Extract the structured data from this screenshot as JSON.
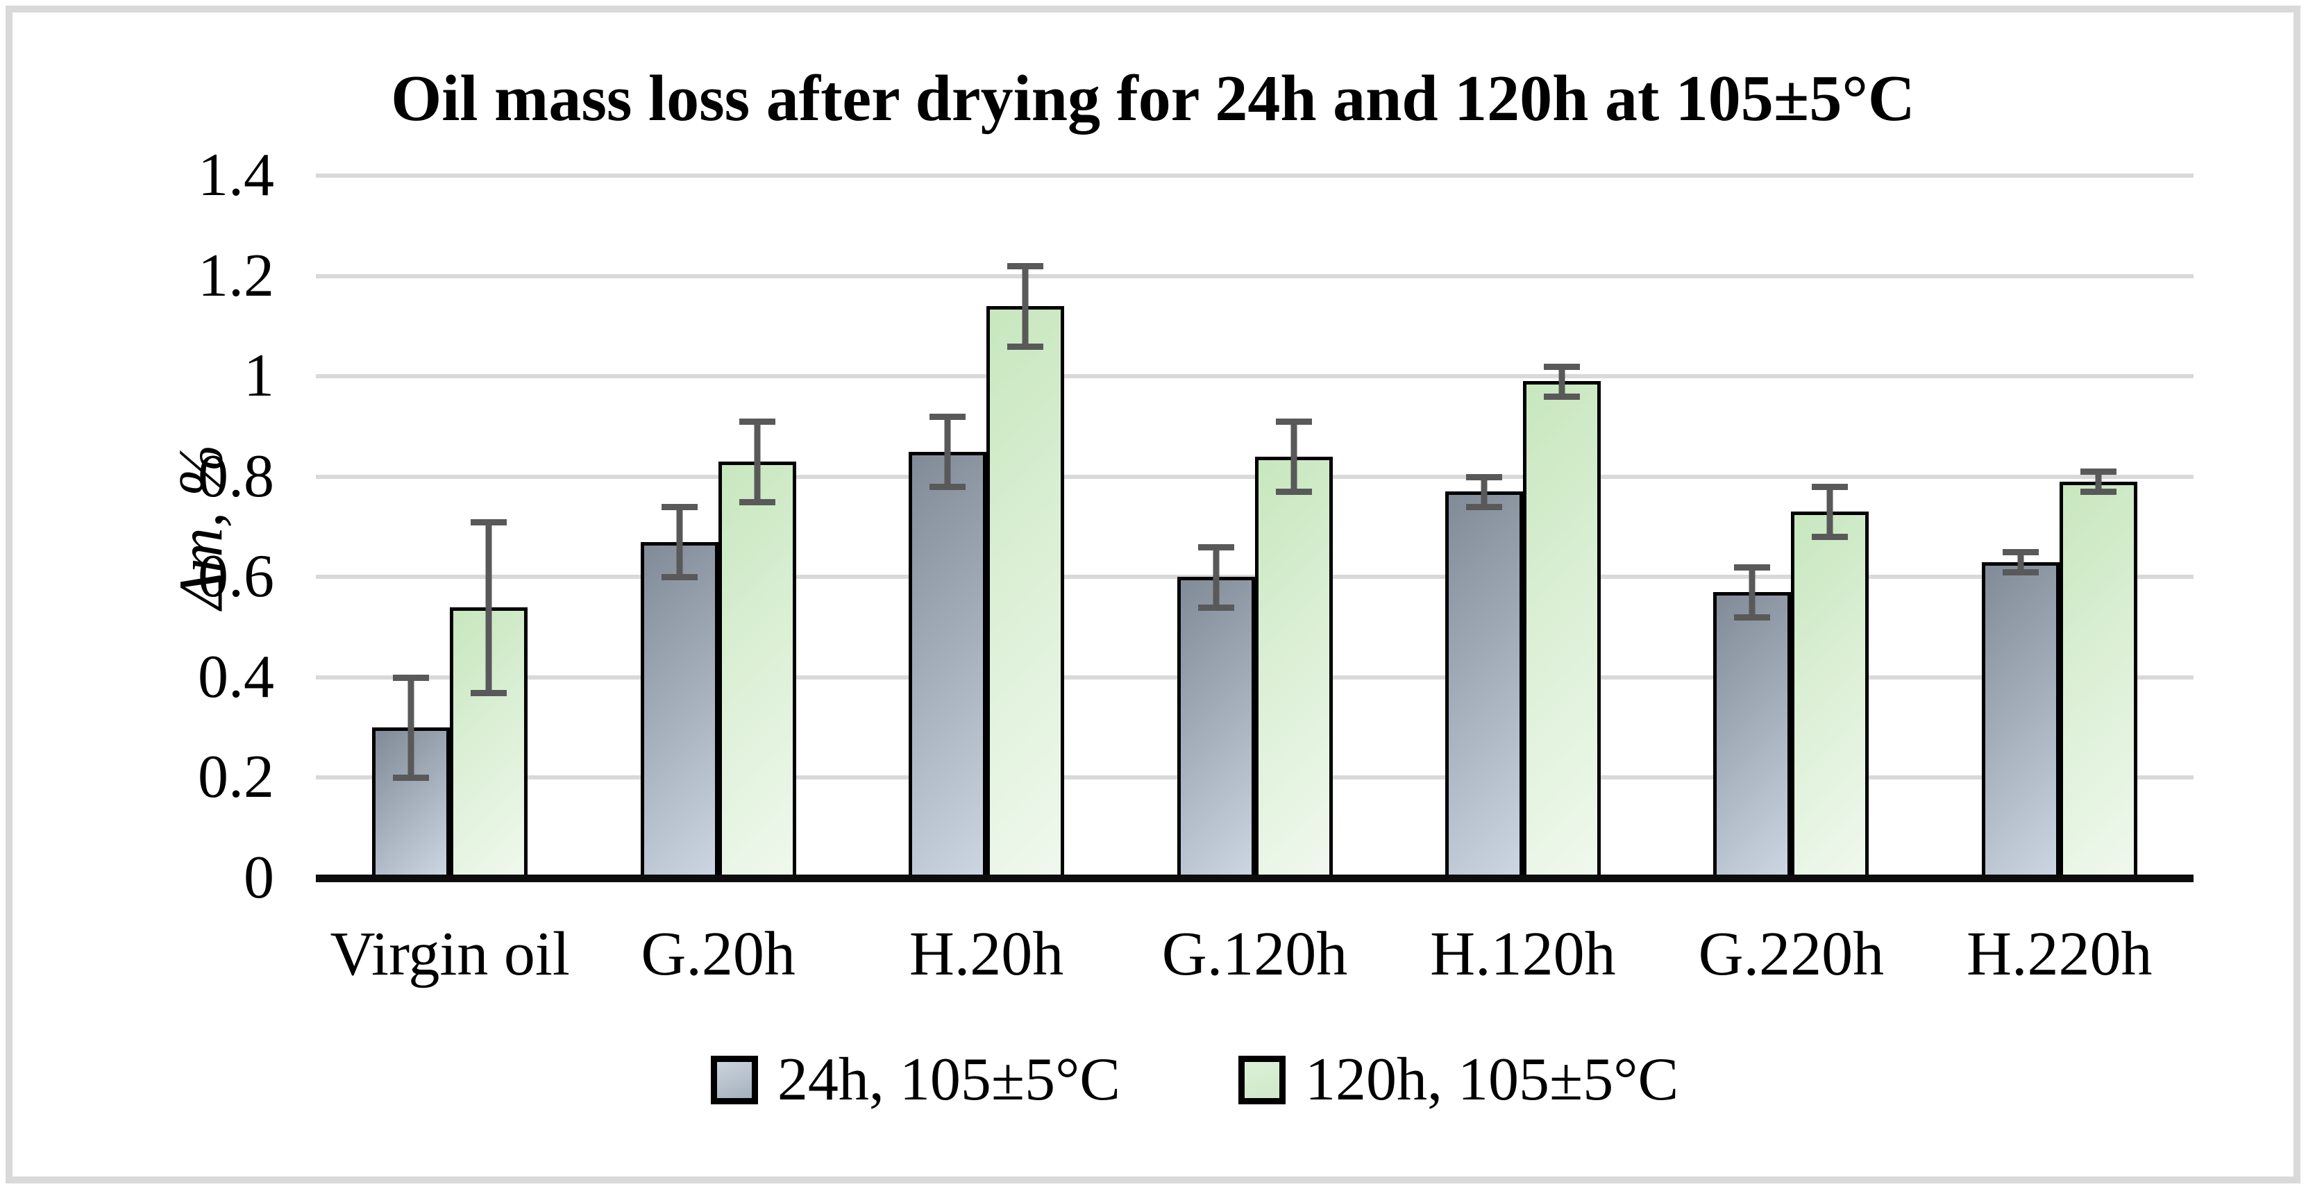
{
  "figure": {
    "title": "Oil mass loss after drying for 24h and 120h at 105±5°C"
  },
  "chart_data": {
    "type": "bar",
    "title": "Oil mass loss after drying for 24h and 120h at 105±5°C",
    "xlabel": "",
    "ylabel": "Δm, %",
    "categories": [
      "Virgin oil",
      "G.20h",
      "H.20h",
      "G.120h",
      "H.120h",
      "G.220h",
      "H.220h"
    ],
    "series": [
      {
        "name": "24h, 105±5°C",
        "values": [
          0.3,
          0.67,
          0.85,
          0.6,
          0.77,
          0.57,
          0.63
        ],
        "errors": [
          0.1,
          0.07,
          0.07,
          0.06,
          0.03,
          0.05,
          0.02
        ]
      },
      {
        "name": "120h, 105±5°C",
        "values": [
          0.54,
          0.83,
          1.14,
          0.84,
          0.99,
          0.73,
          0.79
        ],
        "errors": [
          0.17,
          0.08,
          0.08,
          0.07,
          0.03,
          0.05,
          0.02
        ]
      }
    ],
    "ylim": [
      0,
      1.4
    ],
    "y_tick_values": [
      0,
      0.2,
      0.4,
      0.6,
      0.8,
      1,
      1.2,
      1.4
    ],
    "y_tick_labels": [
      "0",
      "0.2",
      "0.4",
      "0.6",
      "0.8",
      "1",
      "1.2",
      "1.4"
    ],
    "grid": true,
    "error_bars": true,
    "legend_position": "bottom",
    "colors": {
      "series_24h_dark": "#818b98",
      "series_24h_light": "#ccd6e2",
      "series_120h_dark": "#c7e7be",
      "series_120h_light": "#eff8ed",
      "bar_border": "#000000",
      "error_bar": "#595959",
      "gridline": "#d9d9d9",
      "axis_line": "#0d0d0d",
      "frame_border": "#d9d9d9",
      "background": "#ffffff",
      "text": "#000000"
    }
  }
}
